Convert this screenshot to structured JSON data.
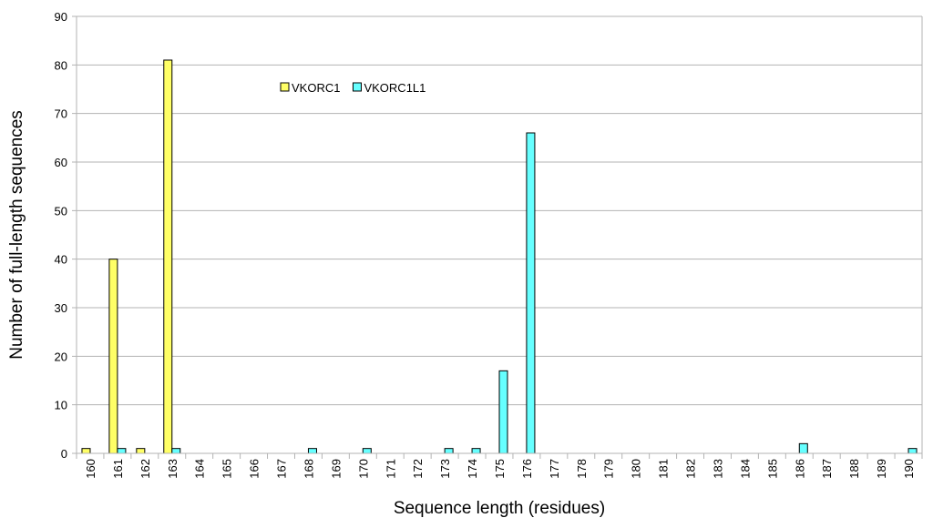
{
  "chart_data": {
    "type": "bar",
    "x_label": "Sequence length (residues)",
    "y_label": "Number of full-length sequences",
    "categories": [
      "160",
      "161",
      "162",
      "163",
      "164",
      "165",
      "166",
      "167",
      "168",
      "169",
      "170",
      "171",
      "172",
      "173",
      "174",
      "175",
      "176",
      "177",
      "178",
      "179",
      "180",
      "181",
      "182",
      "183",
      "184",
      "185",
      "186",
      "187",
      "188",
      "189",
      "190"
    ],
    "series": [
      {
        "name": "VKORC1",
        "color": "#ffff66",
        "values": [
          1,
          40,
          1,
          81,
          0,
          0,
          0,
          0,
          0,
          0,
          0,
          0,
          0,
          0,
          0,
          0,
          0,
          0,
          0,
          0,
          0,
          0,
          0,
          0,
          0,
          0,
          0,
          0,
          0,
          0,
          0
        ]
      },
      {
        "name": "VKORC1L1",
        "color": "#66ffff",
        "values": [
          0,
          1,
          0,
          1,
          0,
          0,
          0,
          0,
          1,
          0,
          1,
          0,
          0,
          1,
          1,
          17,
          66,
          0,
          0,
          0,
          0,
          0,
          0,
          0,
          0,
          0,
          2,
          0,
          0,
          0,
          1
        ]
      }
    ],
    "ylim": [
      0,
      90
    ],
    "yticks": [
      0,
      10,
      20,
      30,
      40,
      50,
      60,
      70,
      80,
      90
    ],
    "grid": true
  }
}
